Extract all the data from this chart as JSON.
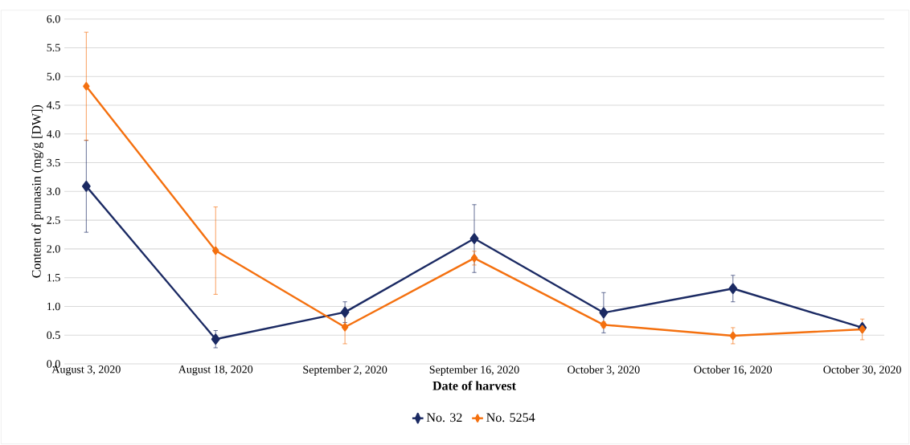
{
  "chart_data": {
    "type": "line",
    "xlabel": "**Date of harvest**",
    "ylabel": "Content of prunasin (mg/g [DW])",
    "categories": [
      "August 3, 2020",
      "August 18, 2020",
      "September 2, 2020",
      "September 16, 2020",
      "October 3, 2020",
      "October 16, 2020",
      "October 30, 2020"
    ],
    "series": [
      {
        "name": "No. 32",
        "color": "#1b2a63",
        "values": [
          3.09,
          0.43,
          0.9,
          2.18,
          0.89,
          1.31,
          0.63
        ],
        "errors": [
          0.8,
          0.15,
          0.18,
          0.59,
          0.35,
          0.23,
          0.05
        ]
      },
      {
        "name": "No. 5254",
        "color": "#f4700f",
        "values": [
          4.83,
          1.97,
          0.64,
          1.84,
          0.68,
          0.49,
          0.6
        ],
        "errors": [
          0.94,
          0.76,
          0.29,
          0.12,
          0.05,
          0.14,
          0.18
        ]
      }
    ],
    "ylim": [
      0,
      6
    ],
    "yticks": [
      {
        "value": 0,
        "label": "0.0"
      },
      {
        "value": 0.5,
        "label": "0.5"
      },
      {
        "value": 1,
        "label": "1.0"
      },
      {
        "value": 1.5,
        "label": "1.5"
      },
      {
        "value": 2,
        "label": "2.0"
      },
      {
        "value": 2.5,
        "label": "2.5"
      },
      {
        "value": 3,
        "label": "3.0"
      },
      {
        "value": 3.5,
        "label": "3.5"
      },
      {
        "value": 4,
        "label": "4.0"
      },
      {
        "value": 4.5,
        "label": "4.5"
      },
      {
        "value": 5,
        "label": "5.0"
      },
      {
        "value": 5.5,
        "label": "5.5"
      },
      {
        "value": 6,
        "label": "6.0"
      }
    ],
    "grid": "y",
    "legend": "bottom",
    "marker": "diamond",
    "line_style": "solid"
  }
}
